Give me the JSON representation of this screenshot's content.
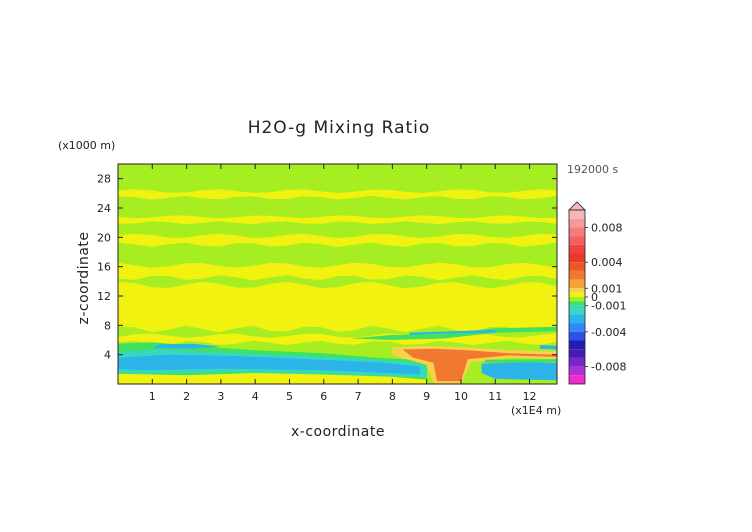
{
  "chart_data": {
    "type": "heatmap",
    "title": "H2O-g Mixing Ratio",
    "xlabel": "x-coordinate",
    "ylabel": "z-coordinate",
    "x_unit": "(x1E4 m)",
    "y_unit": "(x1000 m)",
    "time_label": "192000 s",
    "xlim": [
      0,
      12.8
    ],
    "ylim": [
      0,
      30
    ],
    "x_ticks": [
      1,
      2,
      3,
      4,
      5,
      6,
      7,
      8,
      9,
      10,
      11,
      12
    ],
    "y_ticks": [
      4,
      8,
      12,
      16,
      20,
      24,
      28
    ],
    "colorbar": {
      "tick_labels": [
        "0.008",
        "0.004",
        "0.001",
        "0",
        "-0.001",
        "-0.004",
        "-0.008"
      ],
      "tick_values": [
        0.008,
        0.004,
        0.001,
        0,
        -0.001,
        -0.004,
        -0.008
      ],
      "range": [
        -0.01,
        0.01
      ],
      "bands": [
        {
          "from": 0.009,
          "to": 0.01,
          "color": "#f4b8b8"
        },
        {
          "from": 0.008,
          "to": 0.009,
          "color": "#f49a9a"
        },
        {
          "from": 0.007,
          "to": 0.008,
          "color": "#f47c7c"
        },
        {
          "from": 0.006,
          "to": 0.007,
          "color": "#f45f5f"
        },
        {
          "from": 0.005,
          "to": 0.006,
          "color": "#f04444"
        },
        {
          "from": 0.004,
          "to": 0.005,
          "color": "#e83a2c"
        },
        {
          "from": 0.003,
          "to": 0.004,
          "color": "#ee5522"
        },
        {
          "from": 0.002,
          "to": 0.003,
          "color": "#f07830"
        },
        {
          "from": 0.001,
          "to": 0.002,
          "color": "#f5a338"
        },
        {
          "from": 0.0005,
          "to": 0.001,
          "color": "#f7d24a"
        },
        {
          "from": 0.0,
          "to": 0.0005,
          "color": "#f2f211"
        },
        {
          "from": -0.0005,
          "to": 0.0,
          "color": "#a6ee22"
        },
        {
          "from": -0.001,
          "to": -0.0005,
          "color": "#40e060"
        },
        {
          "from": -0.002,
          "to": -0.001,
          "color": "#36d8c0"
        },
        {
          "from": -0.003,
          "to": -0.002,
          "color": "#2cb4e8"
        },
        {
          "from": -0.004,
          "to": -0.003,
          "color": "#3088ff"
        },
        {
          "from": -0.005,
          "to": -0.004,
          "color": "#3050e8"
        },
        {
          "from": -0.006,
          "to": -0.005,
          "color": "#2020b0"
        },
        {
          "from": -0.007,
          "to": -0.006,
          "color": "#4a1ab8"
        },
        {
          "from": -0.008,
          "to": -0.007,
          "color": "#7a26c8"
        },
        {
          "from": -0.009,
          "to": -0.008,
          "color": "#b030d8"
        },
        {
          "from": -0.01,
          "to": -0.009,
          "color": "#f02cc8"
        }
      ]
    },
    "field_colors": {
      "background": "#a6ee22",
      "positive_small": "#f2f211",
      "positive_mid": "#f7d24a",
      "positive_high": "#f07830",
      "negative_small": "#40e060",
      "negative_mid": "#36d8c0",
      "negative_high": "#2cb4e8"
    }
  }
}
